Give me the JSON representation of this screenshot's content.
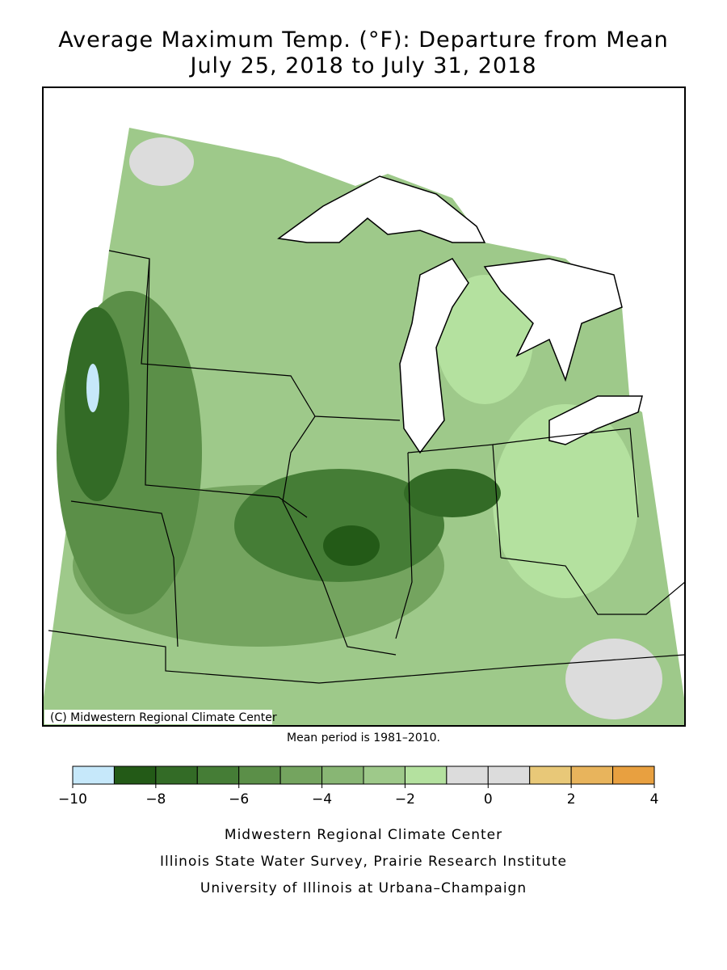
{
  "header": {
    "title": "Average Maximum Temp. (°F): Departure from Mean",
    "subtitle": "July 25, 2018 to July 31, 2018"
  },
  "map": {
    "copyright": "(C) Midwestern Regional Climate Center"
  },
  "note": "Mean period is 1981–2010.",
  "legend": {
    "bins": [
      -10,
      -9,
      -8,
      -7,
      -6,
      -5,
      -4,
      -3,
      -2,
      -1,
      0,
      1,
      2,
      3,
      4
    ],
    "colors": [
      "#c6e8fa",
      "#235a17",
      "#336b26",
      "#457d36",
      "#5b8f48",
      "#74a45f",
      "#88b674",
      "#9ec98a",
      "#b4e19f",
      "#dcdcdc",
      "#dcdcdc",
      "#e8c878",
      "#e8b45c",
      "#e8a040"
    ],
    "ticks": [
      {
        "value": -10,
        "label": "−10"
      },
      {
        "value": -8,
        "label": "−8"
      },
      {
        "value": -6,
        "label": "−6"
      },
      {
        "value": -4,
        "label": "−4"
      },
      {
        "value": -2,
        "label": "−2"
      },
      0,
      2,
      4
    ]
  },
  "credits": [
    "Midwestern Regional Climate Center",
    "Illinois State Water Survey, Prairie Research Institute",
    "University of Illinois at Urbana–Champaign"
  ]
}
